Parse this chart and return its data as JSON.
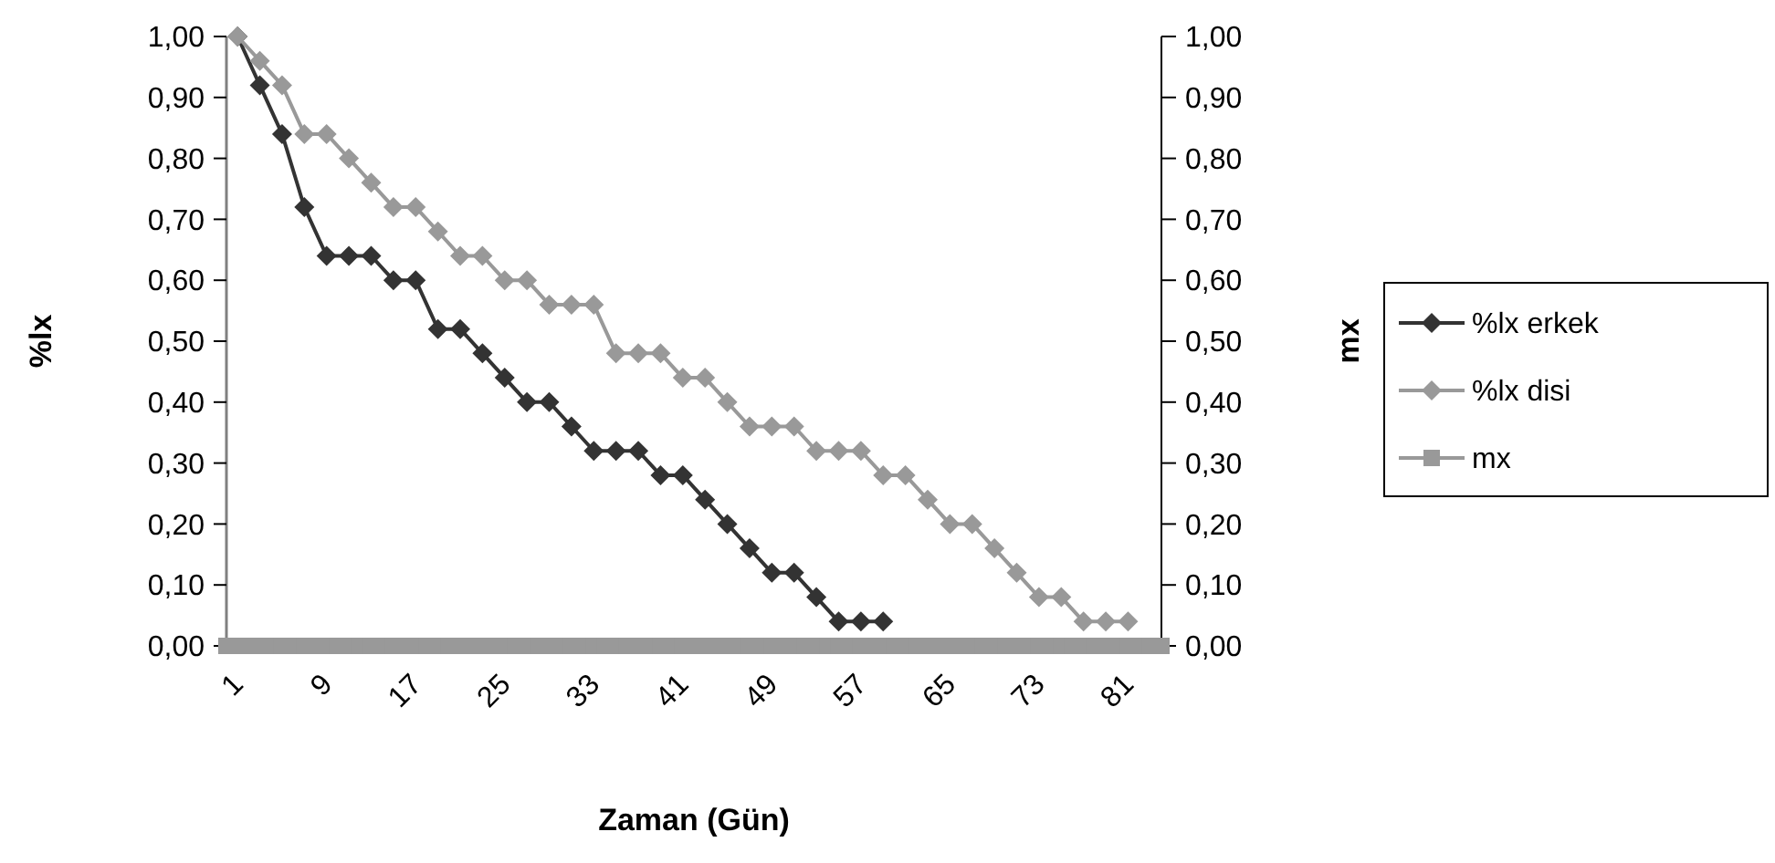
{
  "chart_data": {
    "type": "line",
    "xlabel": "Zaman (Gün)",
    "ylabel": "%lx",
    "y2label": "mx",
    "xlim": [
      0,
      84
    ],
    "xticks": [
      1,
      9,
      17,
      25,
      33,
      41,
      49,
      57,
      65,
      73,
      81
    ],
    "ylim": [
      0,
      1
    ],
    "yticks": [
      {
        "value": 0,
        "label": "0,00"
      },
      {
        "value": 0.1,
        "label": "0,10"
      },
      {
        "value": 0.2,
        "label": "0,20"
      },
      {
        "value": 0.3,
        "label": "0,30"
      },
      {
        "value": 0.4,
        "label": "0,40"
      },
      {
        "value": 0.5,
        "label": "0,50"
      },
      {
        "value": 0.6,
        "label": "0,60"
      },
      {
        "value": 0.7,
        "label": "0,70"
      },
      {
        "value": 0.8,
        "label": "0,80"
      },
      {
        "value": 0.9,
        "label": "0,90"
      },
      {
        "value": 1,
        "label": "1,00"
      }
    ],
    "y2lim": [
      0,
      1
    ],
    "y2ticks": [
      {
        "value": 0,
        "label": "0,00"
      },
      {
        "value": 0.1,
        "label": "0,10"
      },
      {
        "value": 0.2,
        "label": "0,20"
      },
      {
        "value": 0.3,
        "label": "0,30"
      },
      {
        "value": 0.4,
        "label": "0,40"
      },
      {
        "value": 0.5,
        "label": "0,50"
      },
      {
        "value": 0.6,
        "label": "0,60"
      },
      {
        "value": 0.7,
        "label": "0,70"
      },
      {
        "value": 0.8,
        "label": "0,80"
      },
      {
        "value": 0.9,
        "label": "0,90"
      },
      {
        "value": 1,
        "label": "1,00"
      }
    ],
    "legend": "right",
    "grid": false,
    "series": [
      {
        "name": "%lx erkek",
        "color": "#333333",
        "marker": "diamond",
        "x": [
          1,
          3,
          5,
          7,
          9,
          11,
          13,
          15,
          17,
          19,
          21,
          23,
          25,
          27,
          29,
          31,
          33,
          35,
          37,
          39,
          41,
          43,
          45,
          47,
          49,
          51,
          53,
          55,
          57,
          59
        ],
        "values": [
          1.0,
          0.92,
          0.84,
          0.72,
          0.64,
          0.64,
          0.64,
          0.6,
          0.6,
          0.52,
          0.52,
          0.48,
          0.44,
          0.4,
          0.4,
          0.36,
          0.32,
          0.32,
          0.32,
          0.28,
          0.28,
          0.24,
          0.2,
          0.16,
          0.12,
          0.12,
          0.08,
          0.04,
          0.04,
          0.04
        ]
      },
      {
        "name": "%lx disi",
        "color": "#999999",
        "marker": "diamond",
        "x": [
          1,
          3,
          5,
          7,
          9,
          11,
          13,
          15,
          17,
          19,
          21,
          23,
          25,
          27,
          29,
          31,
          33,
          35,
          37,
          39,
          41,
          43,
          45,
          47,
          49,
          51,
          53,
          55,
          57,
          59,
          61,
          63,
          65,
          67,
          69,
          71,
          73,
          75,
          77,
          79,
          81
        ],
        "values": [
          1.0,
          0.96,
          0.92,
          0.84,
          0.84,
          0.8,
          0.76,
          0.72,
          0.72,
          0.68,
          0.64,
          0.64,
          0.6,
          0.6,
          0.56,
          0.56,
          0.56,
          0.48,
          0.48,
          0.48,
          0.44,
          0.44,
          0.4,
          0.36,
          0.36,
          0.36,
          0.32,
          0.32,
          0.32,
          0.28,
          0.28,
          0.24,
          0.2,
          0.2,
          0.16,
          0.12,
          0.08,
          0.08,
          0.04,
          0.04,
          0.04
        ]
      },
      {
        "name": "mx",
        "color": "#999999",
        "marker": "square",
        "x": [
          0,
          1,
          2,
          3,
          4,
          5,
          6,
          7,
          8,
          9,
          10,
          11,
          12,
          13,
          14,
          15,
          16,
          17,
          18,
          19,
          20,
          21,
          22,
          23,
          24,
          25,
          26,
          27,
          28,
          29,
          30,
          31,
          32,
          33,
          34,
          35,
          36,
          37,
          38,
          39,
          40,
          41,
          42,
          43,
          44,
          45,
          46,
          47,
          48,
          49,
          50,
          51,
          52,
          53,
          54,
          55,
          56,
          57,
          58,
          59,
          60,
          61,
          62,
          63,
          64,
          65,
          66,
          67,
          68,
          69,
          70,
          71,
          72,
          73,
          74,
          75,
          76,
          77,
          78,
          79,
          80,
          81,
          82,
          83,
          84
        ],
        "values": [
          0,
          0,
          0,
          0,
          0,
          0,
          0,
          0,
          0,
          0,
          0,
          0,
          0,
          0,
          0,
          0,
          0,
          0,
          0,
          0,
          0,
          0,
          0,
          0,
          0,
          0,
          0,
          0,
          0,
          0,
          0,
          0,
          0,
          0,
          0,
          0,
          0,
          0,
          0,
          0,
          0,
          0,
          0,
          0,
          0,
          0,
          0,
          0,
          0,
          0,
          0,
          0,
          0,
          0,
          0,
          0,
          0,
          0,
          0,
          0,
          0,
          0,
          0,
          0,
          0,
          0,
          0,
          0,
          0,
          0,
          0,
          0,
          0,
          0,
          0,
          0,
          0,
          0,
          0,
          0,
          0,
          0,
          0,
          0,
          0
        ]
      }
    ]
  }
}
